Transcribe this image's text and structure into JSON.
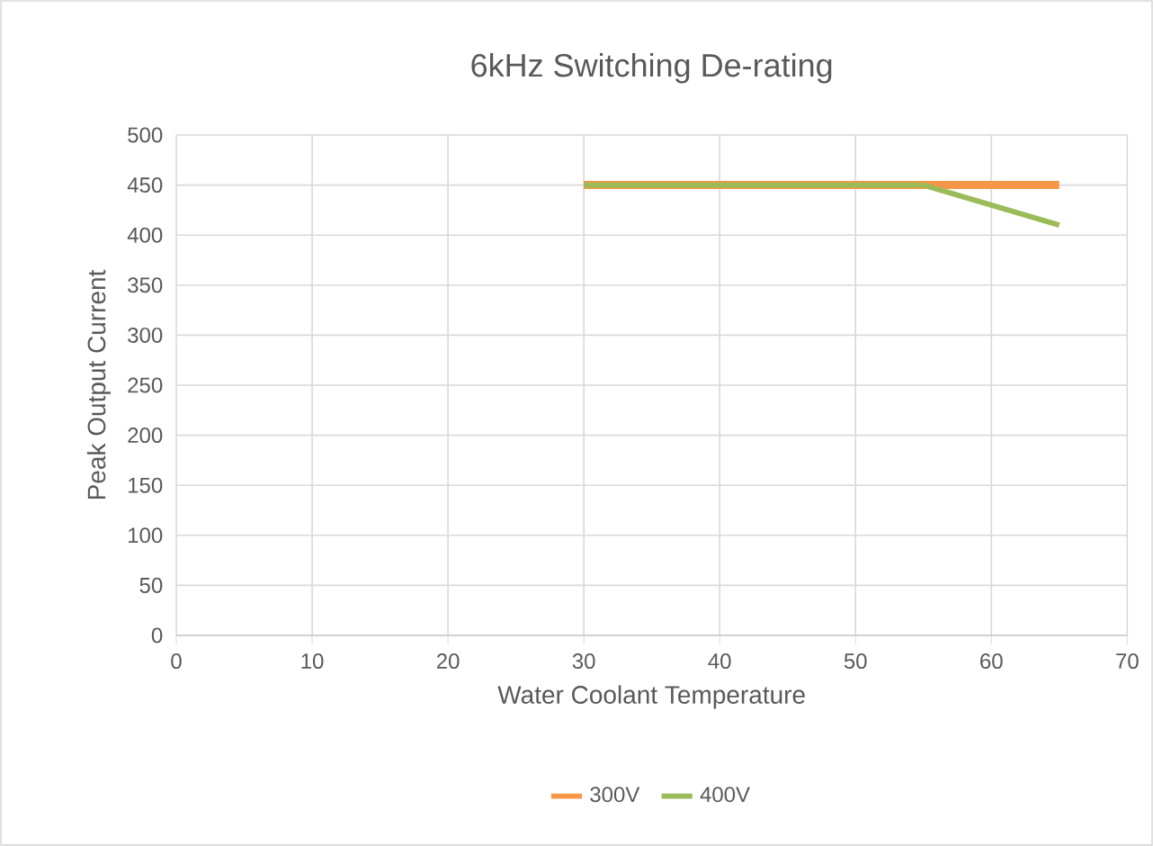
{
  "chart_data": {
    "type": "line",
    "title": "6kHz Switching De-rating",
    "xlabel": "Water Coolant Temperature",
    "ylabel": "Peak Output Current",
    "x": [
      30,
      55,
      65
    ],
    "series": [
      {
        "name": "300V",
        "color": "#f79646",
        "values": [
          450,
          450,
          450
        ]
      },
      {
        "name": "400V",
        "color": "#9bbb59",
        "values": [
          450,
          450,
          410
        ]
      }
    ],
    "xlim": [
      0,
      70
    ],
    "ylim": [
      0,
      500
    ],
    "xticks": [
      0,
      10,
      20,
      30,
      40,
      50,
      60,
      70
    ],
    "yticks": [
      0,
      50,
      100,
      150,
      200,
      250,
      300,
      350,
      400,
      450,
      500
    ],
    "grid": true,
    "legend": "bottom"
  }
}
